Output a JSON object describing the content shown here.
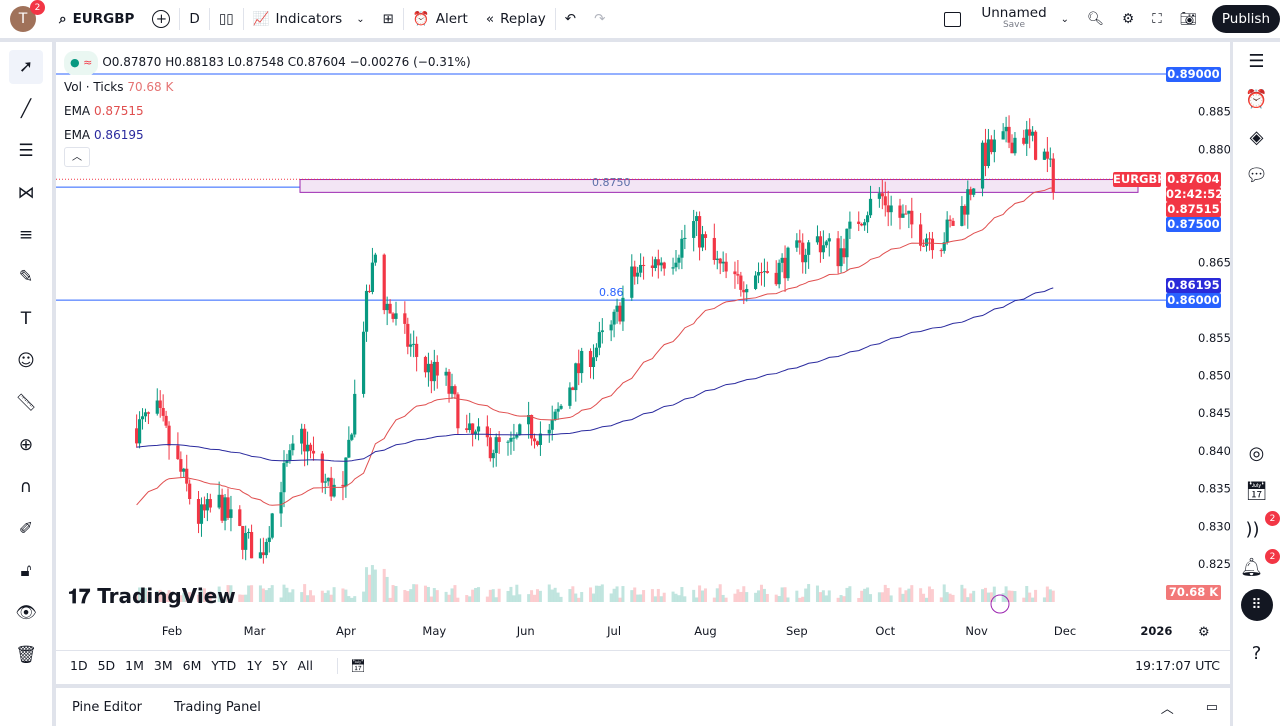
{
  "topbar": {
    "avatar_letter": "T",
    "avatar_badge": "2",
    "symbol": "EURGBP",
    "interval": "D",
    "indicators": "Indicators",
    "alert": "Alert",
    "replay": "Replay",
    "layout_name": "Unnamed",
    "layout_sub": "Save",
    "publish": "Publish"
  },
  "legend": {
    "ohlc": "O0.87870 H0.88183 L0.87548 C0.87604 −0.00276 (−0.31%)",
    "vol_label": "Vol · Ticks",
    "vol_value": "70.68 K",
    "ema1_label": "EMA",
    "ema1_value": "0.87515",
    "ema2_label": "EMA",
    "ema2_value": "0.86195"
  },
  "colors": {
    "up": "#089981",
    "down": "#f23645",
    "ema_fast": "#e04f4f",
    "ema_slow": "#2a2a9e",
    "line_blue": "#2962ff",
    "zone": "#9c27b0"
  },
  "price_axis": {
    "ticks": [
      "0.88500",
      "0.88000",
      "0.86500",
      "0.85500",
      "0.85000",
      "0.84500",
      "0.84000",
      "0.83500",
      "0.83000",
      "0.82500"
    ],
    "labels": {
      "level_890": "0.89000",
      "symbol": "EURGBP",
      "last": "0.87604",
      "countdown": "02:42:52",
      "ema_fast": "0.87515",
      "level_875": "0.87500",
      "ema_slow": "0.86195",
      "level_860": "0.86000",
      "volume": "70.68 K"
    }
  },
  "annotations": {
    "zone_label": "0.8750",
    "line_label": "0.86"
  },
  "time_axis": [
    "Feb",
    "Mar",
    "Apr",
    "May",
    "Jun",
    "Jul",
    "Aug",
    "Sep",
    "Oct",
    "Nov",
    "Dec",
    "2026"
  ],
  "ranges": [
    "1D",
    "5D",
    "1M",
    "3M",
    "6M",
    "YTD",
    "1Y",
    "5Y",
    "All"
  ],
  "clock": "19:17:07 UTC",
  "bottom_tabs": [
    "Pine Editor",
    "Trading Panel"
  ],
  "right_badges": {
    "feed": "2",
    "notifications": "2"
  },
  "watermark": "TradingView",
  "chart_data": {
    "type": "candlestick",
    "symbol": "EURGBP",
    "interval": "1D",
    "ylim": [
      0.8225,
      0.8915
    ],
    "approx_weekly_close": [
      [
        "2025-01-20",
        0.843
      ],
      [
        "2025-01-27",
        0.845
      ],
      [
        "2025-02-03",
        0.838
      ],
      [
        "2025-02-10",
        0.831
      ],
      [
        "2025-02-17",
        0.833
      ],
      [
        "2025-02-24",
        0.829
      ],
      [
        "2025-03-03",
        0.826
      ],
      [
        "2025-03-10",
        0.836
      ],
      [
        "2025-03-17",
        0.842
      ],
      [
        "2025-03-24",
        0.836
      ],
      [
        "2025-03-31",
        0.834
      ],
      [
        "2025-04-07",
        0.857
      ],
      [
        "2025-04-11",
        0.866
      ],
      [
        "2025-04-14",
        0.86
      ],
      [
        "2025-04-21",
        0.855
      ],
      [
        "2025-04-28",
        0.851
      ],
      [
        "2025-05-05",
        0.849
      ],
      [
        "2025-05-12",
        0.842
      ],
      [
        "2025-05-19",
        0.841
      ],
      [
        "2025-05-26",
        0.84
      ],
      [
        "2025-06-02",
        0.843
      ],
      [
        "2025-06-09",
        0.842
      ],
      [
        "2025-06-16",
        0.849
      ],
      [
        "2025-06-23",
        0.853
      ],
      [
        "2025-06-30",
        0.856
      ],
      [
        "2025-07-07",
        0.863
      ],
      [
        "2025-07-14",
        0.865
      ],
      [
        "2025-07-21",
        0.866
      ],
      [
        "2025-07-28",
        0.87
      ],
      [
        "2025-08-04",
        0.865
      ],
      [
        "2025-08-11",
        0.862
      ],
      [
        "2025-08-18",
        0.864
      ],
      [
        "2025-08-25",
        0.864
      ],
      [
        "2025-09-01",
        0.866
      ],
      [
        "2025-09-08",
        0.868
      ],
      [
        "2025-09-15",
        0.866
      ],
      [
        "2025-09-22",
        0.871
      ],
      [
        "2025-09-29",
        0.874
      ],
      [
        "2025-10-06",
        0.871
      ],
      [
        "2025-10-13",
        0.869
      ],
      [
        "2025-10-20",
        0.868
      ],
      [
        "2025-10-27",
        0.872
      ],
      [
        "2025-11-03",
        0.879
      ],
      [
        "2025-11-10",
        0.881
      ],
      [
        "2025-11-17",
        0.882
      ],
      [
        "2025-11-24",
        0.879
      ],
      [
        "2025-11-27",
        0.876
      ]
    ],
    "horizontal_levels": [
      0.89,
      0.875,
      0.86
    ],
    "ema_fast_last": 0.87515,
    "ema_slow_last": 0.86195,
    "last_volume": "70.68K"
  }
}
